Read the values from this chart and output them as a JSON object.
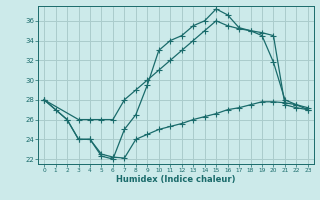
{
  "bg_color": "#cceaea",
  "grid_color": "#aacccc",
  "line_color": "#1a6b6b",
  "xlabel": "Humidex (Indice chaleur)",
  "xlim": [
    -0.5,
    23.5
  ],
  "ylim": [
    21.5,
    37.5
  ],
  "xticks": [
    0,
    1,
    2,
    3,
    4,
    5,
    6,
    7,
    8,
    9,
    10,
    11,
    12,
    13,
    14,
    15,
    16,
    17,
    18,
    19,
    20,
    21,
    22,
    23
  ],
  "yticks": [
    22,
    24,
    26,
    28,
    30,
    32,
    34,
    36
  ],
  "line1_x": [
    0,
    1,
    2,
    3,
    4,
    5,
    6,
    7,
    8,
    9,
    10,
    11,
    12,
    13,
    14,
    15,
    16,
    17,
    18,
    19,
    20,
    21,
    22,
    23
  ],
  "line1_y": [
    28,
    27,
    26,
    24,
    24,
    22.3,
    22,
    25,
    26.5,
    29.5,
    33,
    34,
    34.5,
    35.5,
    36,
    37.2,
    36.6,
    35.3,
    35,
    34.5,
    31.8,
    28,
    27.5,
    27
  ],
  "line2_x": [
    0,
    3,
    4,
    5,
    6,
    7,
    8,
    9,
    10,
    11,
    12,
    13,
    14,
    15,
    16,
    17,
    18,
    19,
    20,
    21,
    22,
    23
  ],
  "line2_y": [
    28,
    26,
    26,
    26,
    26,
    28,
    29,
    30,
    31,
    32,
    33,
    34,
    35,
    36,
    35.5,
    35.2,
    35,
    34.8,
    34.5,
    27.5,
    27.2,
    27
  ],
  "line3_x": [
    0,
    2,
    3,
    4,
    5,
    6,
    7,
    8,
    9,
    10,
    11,
    12,
    13,
    14,
    15,
    16,
    17,
    18,
    19,
    20,
    21,
    22,
    23
  ],
  "line3_y": [
    28,
    26,
    24,
    24,
    22.5,
    22.2,
    22.1,
    24.0,
    24.5,
    25,
    25.3,
    25.6,
    26,
    26.3,
    26.6,
    27,
    27.2,
    27.5,
    27.8,
    27.8,
    27.7,
    27.5,
    27.2
  ]
}
